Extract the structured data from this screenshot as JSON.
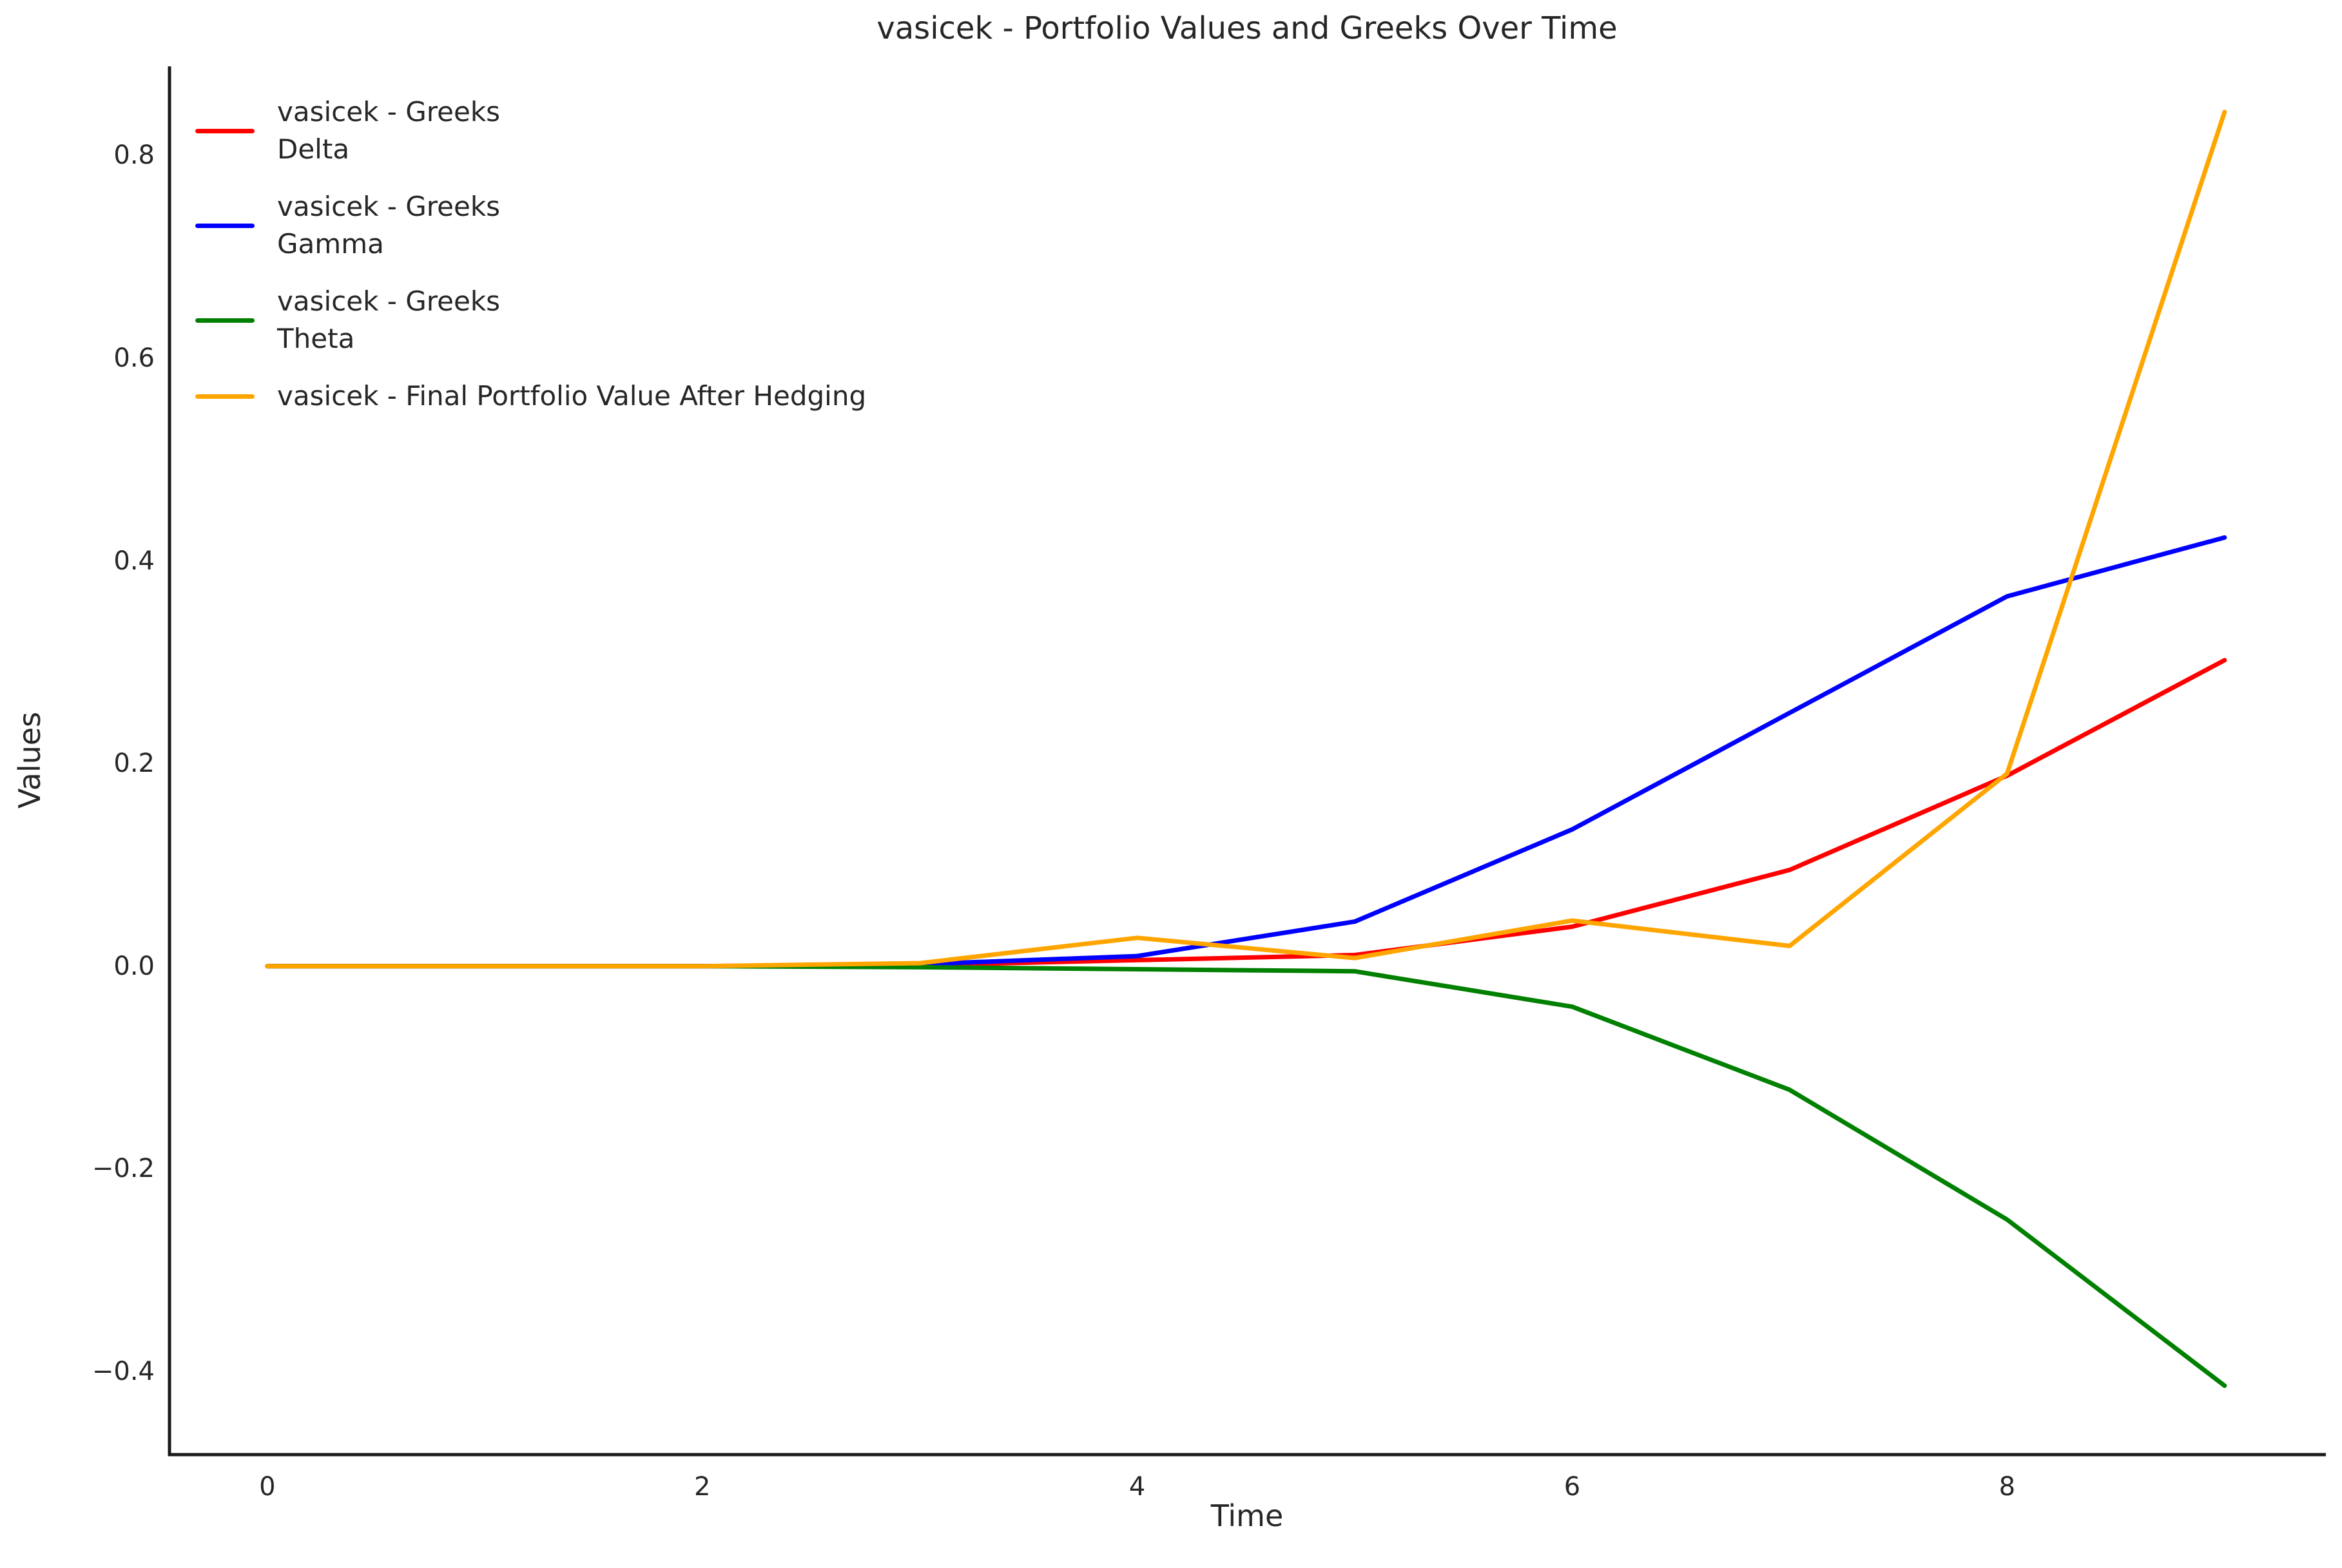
{
  "title": "vasicek - Portfolio Values and Greeks Over Time",
  "xlabel": "Time",
  "ylabel": "Values",
  "colors": {
    "axis": "#1a1a1a",
    "text": "#262626",
    "delta": "#ff0000",
    "gamma": "#0000ff",
    "theta": "#008000",
    "portfolio": "#ffa500"
  },
  "chart_data": {
    "type": "line",
    "title": "vasicek - Portfolio Values and Greeks Over Time",
    "xlabel": "Time",
    "ylabel": "Values",
    "x": [
      0,
      1,
      2,
      3,
      4,
      5,
      6,
      7,
      8,
      9
    ],
    "series": [
      {
        "name": "vasicek - Greeks\nDelta",
        "color": "#ff0000",
        "values": [
          0.0,
          0.0,
          0.0,
          0.001,
          0.006,
          0.011,
          0.039,
          0.095,
          0.188,
          0.302
        ]
      },
      {
        "name": "vasicek - Greeks\nGamma",
        "color": "#0000ff",
        "values": [
          0.0,
          0.0,
          0.0,
          0.002,
          0.01,
          0.044,
          0.135,
          0.25,
          0.365,
          0.423
        ]
      },
      {
        "name": "vasicek - Greeks\nTheta",
        "color": "#008000",
        "values": [
          0.0,
          0.0,
          0.0,
          -0.001,
          -0.003,
          -0.005,
          -0.04,
          -0.122,
          -0.25,
          -0.414
        ]
      },
      {
        "name": "vasicek - Final Portfolio Value After Hedging",
        "color": "#ffa500",
        "values": [
          0.0,
          0.0,
          0.0,
          0.003,
          0.028,
          0.008,
          0.045,
          0.02,
          0.19,
          0.843
        ]
      }
    ],
    "x_ticks": [
      0,
      2,
      4,
      6,
      8
    ],
    "x_tick_labels": [
      "0",
      "2",
      "4",
      "6",
      "8"
    ],
    "y_ticks": [
      0.8,
      0.6,
      0.4,
      0.2,
      0.0,
      -0.2,
      -0.4
    ],
    "y_tick_labels": [
      "0.8",
      "0.6",
      "0.4",
      "0.2",
      "0.0",
      "−0.2",
      "−0.4"
    ],
    "xlim": [
      -0.45,
      9.46
    ],
    "ylim": [
      -0.482,
      0.888
    ],
    "grid": false,
    "legend_position": "upper-left",
    "line_width": 7
  }
}
